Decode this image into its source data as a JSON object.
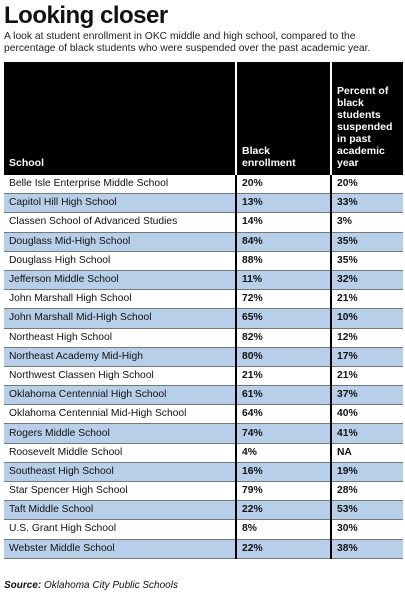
{
  "title": "Looking closer",
  "subtitle": "A look at student enrollment in OKC middle and high school, compared to the percentage of black students who were suspended over the past academic year.",
  "source_label": "Source:",
  "source_text": "Oklahoma City Public Schools",
  "colors": {
    "header_bg": "#000000",
    "alt_row": "#b7cfe8",
    "row": "#ffffff"
  },
  "chart_data": {
    "type": "table",
    "columns": [
      "School",
      "Black enrollment",
      "Percent of black students suspended in past academic year"
    ],
    "rows": [
      [
        "Belle Isle Enterprise Middle School",
        "20%",
        "20%"
      ],
      [
        "Capitol Hill High School",
        "13%",
        "33%"
      ],
      [
        "Classen School of Advanced Studies",
        "14%",
        "3%"
      ],
      [
        "Douglass Mid-High School",
        "84%",
        "35%"
      ],
      [
        "Douglass High School",
        "88%",
        "35%"
      ],
      [
        "Jefferson Middle School",
        "11%",
        "32%"
      ],
      [
        "John Marshall High School",
        "72%",
        "21%"
      ],
      [
        "John Marshall Mid-High School",
        "65%",
        "10%"
      ],
      [
        "Northeast High School",
        "82%",
        "12%"
      ],
      [
        "Northeast Academy Mid-High",
        "80%",
        "17%"
      ],
      [
        "Northwest Classen High School",
        "21%",
        "21%"
      ],
      [
        "Oklahoma Centennial High School",
        "61%",
        "37%"
      ],
      [
        "Oklahoma Centennial Mid-High School",
        "64%",
        "40%"
      ],
      [
        "Rogers Middle School",
        "74%",
        "41%"
      ],
      [
        "Roosevelt Middle School",
        "4%",
        "NA"
      ],
      [
        "Southeast High School",
        "16%",
        "19%"
      ],
      [
        "Star Spencer High School",
        "79%",
        "28%"
      ],
      [
        "Taft Middle School",
        "22%",
        "53%"
      ],
      [
        "U.S. Grant High School",
        "8%",
        "30%"
      ],
      [
        "Webster Middle School",
        "22%",
        "38%"
      ]
    ]
  }
}
